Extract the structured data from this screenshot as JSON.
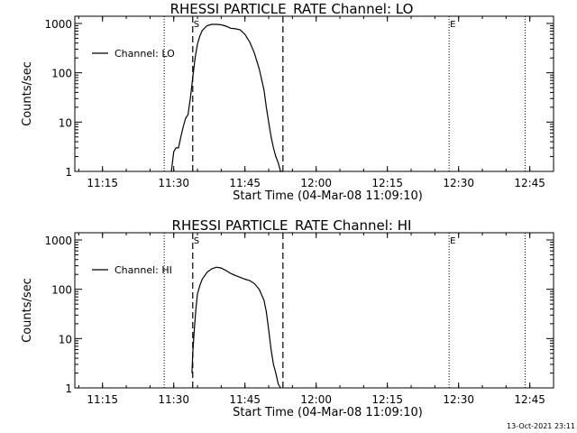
{
  "chart_data": [
    {
      "type": "line",
      "title": "RHESSI PARTICLE_RATE Channel: LO",
      "xlabel": "Start Time (04-Mar-08 11:09:10)",
      "ylabel": "Counts/sec",
      "yscale": "log",
      "ylim": [
        1,
        1000
      ],
      "xlim": [
        "11:09:10",
        "12:50:00"
      ],
      "x_ticks": [
        "11:15",
        "11:30",
        "11:45",
        "12:00",
        "12:15",
        "12:30",
        "12:45"
      ],
      "y_ticks": [
        "1",
        "10",
        "100",
        "1000"
      ],
      "legend": [
        "Channel: LO"
      ],
      "legend_position": "upper-left",
      "markers": {
        "dotted_lines": [
          "11:28",
          "12:28",
          "12:44"
        ],
        "dashed_lines": [
          {
            "time": "11:34",
            "label": "S"
          },
          {
            "time": "11:53",
            "label": ""
          }
        ],
        "end_label": {
          "time": "12:28",
          "label": "E"
        }
      },
      "series": [
        {
          "name": "Channel: LO",
          "x": [
            "11:29:30",
            "11:30:00",
            "11:30:30",
            "11:31:00",
            "11:31:30",
            "11:32:00",
            "11:32:30",
            "11:33:00",
            "11:33:30",
            "11:34:00",
            "11:34:30",
            "11:35:00",
            "11:35:30",
            "11:36:00",
            "11:37:00",
            "11:38:00",
            "11:39:00",
            "11:40:00",
            "11:41:00",
            "11:42:00",
            "11:43:00",
            "11:44:00",
            "11:45:00",
            "11:46:00",
            "11:47:00",
            "11:48:00",
            "11:49:00",
            "11:49:30",
            "11:50:00",
            "11:50:30",
            "11:51:00",
            "11:51:30",
            "11:52:00",
            "11:52:30",
            "11:53:00"
          ],
          "y": [
            1,
            2.5,
            3,
            3,
            5,
            8,
            12,
            14,
            30,
            80,
            200,
            380,
            560,
            720,
            900,
            960,
            960,
            940,
            880,
            800,
            780,
            740,
            600,
            420,
            250,
            120,
            45,
            20,
            10,
            5,
            3,
            2,
            1.5,
            1,
            1
          ]
        }
      ]
    },
    {
      "type": "line",
      "title": "RHESSI PARTICLE_RATE Channel: HI",
      "xlabel": "Start Time (04-Mar-08 11:09:10)",
      "ylabel": "Counts/sec",
      "yscale": "log",
      "ylim": [
        1,
        1000
      ],
      "xlim": [
        "11:09:10",
        "12:50:00"
      ],
      "x_ticks": [
        "11:15",
        "11:30",
        "11:45",
        "12:00",
        "12:15",
        "12:30",
        "12:45"
      ],
      "y_ticks": [
        "1",
        "10",
        "100",
        "1000"
      ],
      "legend": [
        "Channel: HI"
      ],
      "legend_position": "upper-left",
      "markers": {
        "dotted_lines": [
          "11:28",
          "12:28",
          "12:44"
        ],
        "dashed_lines": [
          {
            "time": "11:34",
            "label": "S"
          },
          {
            "time": "11:53",
            "label": ""
          }
        ],
        "end_label": {
          "time": "12:28",
          "label": "E"
        }
      },
      "series": [
        {
          "name": "Channel: HI",
          "x": [
            "11:33:50",
            "11:34:00",
            "11:34:20",
            "11:34:40",
            "11:35:00",
            "11:35:30",
            "11:36:00",
            "11:37:00",
            "11:38:00",
            "11:39:00",
            "11:40:00",
            "11:41:00",
            "11:42:00",
            "11:43:00",
            "11:44:00",
            "11:45:00",
            "11:46:00",
            "11:47:00",
            "11:48:00",
            "11:49:00",
            "11:49:30",
            "11:50:00",
            "11:50:30",
            "11:51:00",
            "11:51:30",
            "11:52:00",
            "11:52:30"
          ],
          "y": [
            2,
            5,
            15,
            40,
            80,
            120,
            160,
            220,
            260,
            280,
            270,
            240,
            210,
            190,
            175,
            160,
            150,
            130,
            100,
            60,
            35,
            15,
            6,
            3,
            2,
            1.2,
            1
          ]
        }
      ]
    }
  ],
  "footer": {
    "timestamp": "13-Oct-2021 23:11"
  }
}
